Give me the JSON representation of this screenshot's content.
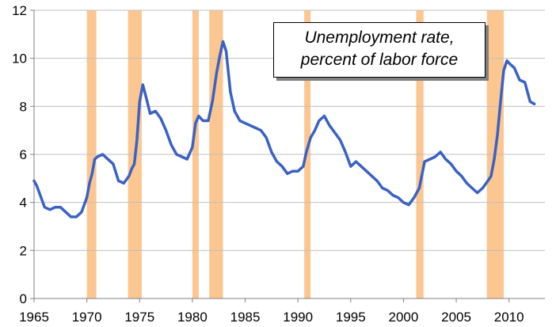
{
  "chart_data": {
    "type": "line",
    "title": "Unemployment rate, percent of labor force",
    "title_lines": [
      "Unemployment rate,",
      "percent of labor force"
    ],
    "xlabel": "",
    "ylabel": "",
    "xlim": [
      1965,
      2013.4
    ],
    "ylim": [
      0,
      12
    ],
    "x_ticks": [
      1965,
      1970,
      1975,
      1980,
      1985,
      1990,
      1995,
      2000,
      2005,
      2010
    ],
    "y_ticks": [
      0,
      2,
      4,
      6,
      8,
      10,
      12
    ],
    "grid": "horizontal",
    "colors": {
      "line": "#3a62c4",
      "recession": "#fcc691",
      "grid": "#bfbfbf"
    },
    "recessions": [
      [
        1970.0,
        1970.9
      ],
      [
        1973.9,
        1975.2
      ],
      [
        1980.0,
        1980.6
      ],
      [
        1981.6,
        1982.9
      ],
      [
        1990.6,
        1991.2
      ],
      [
        2001.2,
        2001.9
      ],
      [
        2007.9,
        2009.5
      ]
    ],
    "series": [
      {
        "x": [
          1965.0,
          1965.25,
          1965.5,
          1965.75,
          1966.0,
          1966.5,
          1967.0,
          1967.5,
          1968.0,
          1968.5,
          1969.0,
          1969.5,
          1970.0,
          1970.25,
          1970.5,
          1970.75,
          1971.0,
          1971.5,
          1972.0,
          1972.5,
          1973.0,
          1973.5,
          1974.0,
          1974.25,
          1974.5,
          1974.75,
          1975.0,
          1975.3,
          1975.6,
          1976.0,
          1976.5,
          1977.0,
          1977.5,
          1978.0,
          1978.5,
          1979.0,
          1979.5,
          1980.0,
          1980.3,
          1980.6,
          1981.0,
          1981.5,
          1981.9,
          1982.3,
          1982.6,
          1982.9,
          1983.2,
          1983.6,
          1984.0,
          1984.5,
          1985.0,
          1985.5,
          1986.0,
          1986.5,
          1987.0,
          1987.5,
          1988.0,
          1988.5,
          1989.0,
          1989.5,
          1990.0,
          1990.5,
          1990.8,
          1991.2,
          1991.6,
          1992.0,
          1992.5,
          1993.0,
          1993.5,
          1994.0,
          1994.5,
          1995.0,
          1995.5,
          1996.0,
          1996.5,
          1997.0,
          1997.5,
          1998.0,
          1998.5,
          1999.0,
          1999.5,
          2000.0,
          2000.5,
          2001.0,
          2001.5,
          2002.0,
          2002.5,
          2003.0,
          2003.5,
          2004.0,
          2004.5,
          2005.0,
          2005.5,
          2006.0,
          2006.5,
          2007.0,
          2007.5,
          2008.0,
          2008.3,
          2008.6,
          2008.9,
          2009.2,
          2009.5,
          2009.8,
          2010.0,
          2010.5,
          2011.0,
          2011.5,
          2012.0,
          2012.4
        ],
        "values": [
          4.9,
          4.7,
          4.4,
          4.1,
          3.8,
          3.7,
          3.8,
          3.8,
          3.6,
          3.4,
          3.4,
          3.6,
          4.2,
          4.8,
          5.2,
          5.8,
          5.9,
          6.0,
          5.8,
          5.6,
          4.9,
          4.8,
          5.1,
          5.4,
          5.6,
          6.6,
          8.2,
          8.9,
          8.4,
          7.7,
          7.8,
          7.5,
          7.0,
          6.4,
          6.0,
          5.9,
          5.8,
          6.3,
          7.3,
          7.6,
          7.4,
          7.4,
          8.2,
          9.4,
          10.1,
          10.7,
          10.3,
          8.6,
          7.8,
          7.4,
          7.3,
          7.2,
          7.1,
          7.0,
          6.7,
          6.1,
          5.7,
          5.5,
          5.2,
          5.3,
          5.3,
          5.5,
          6.1,
          6.7,
          7.0,
          7.4,
          7.6,
          7.2,
          6.9,
          6.6,
          6.1,
          5.5,
          5.7,
          5.5,
          5.3,
          5.1,
          4.9,
          4.6,
          4.5,
          4.3,
          4.2,
          4.0,
          3.9,
          4.2,
          4.6,
          5.7,
          5.8,
          5.9,
          6.1,
          5.8,
          5.6,
          5.3,
          5.1,
          4.8,
          4.6,
          4.4,
          4.6,
          4.9,
          5.1,
          5.8,
          6.8,
          8.2,
          9.5,
          9.9,
          9.8,
          9.6,
          9.1,
          9.0,
          8.2,
          8.1
        ]
      }
    ]
  }
}
